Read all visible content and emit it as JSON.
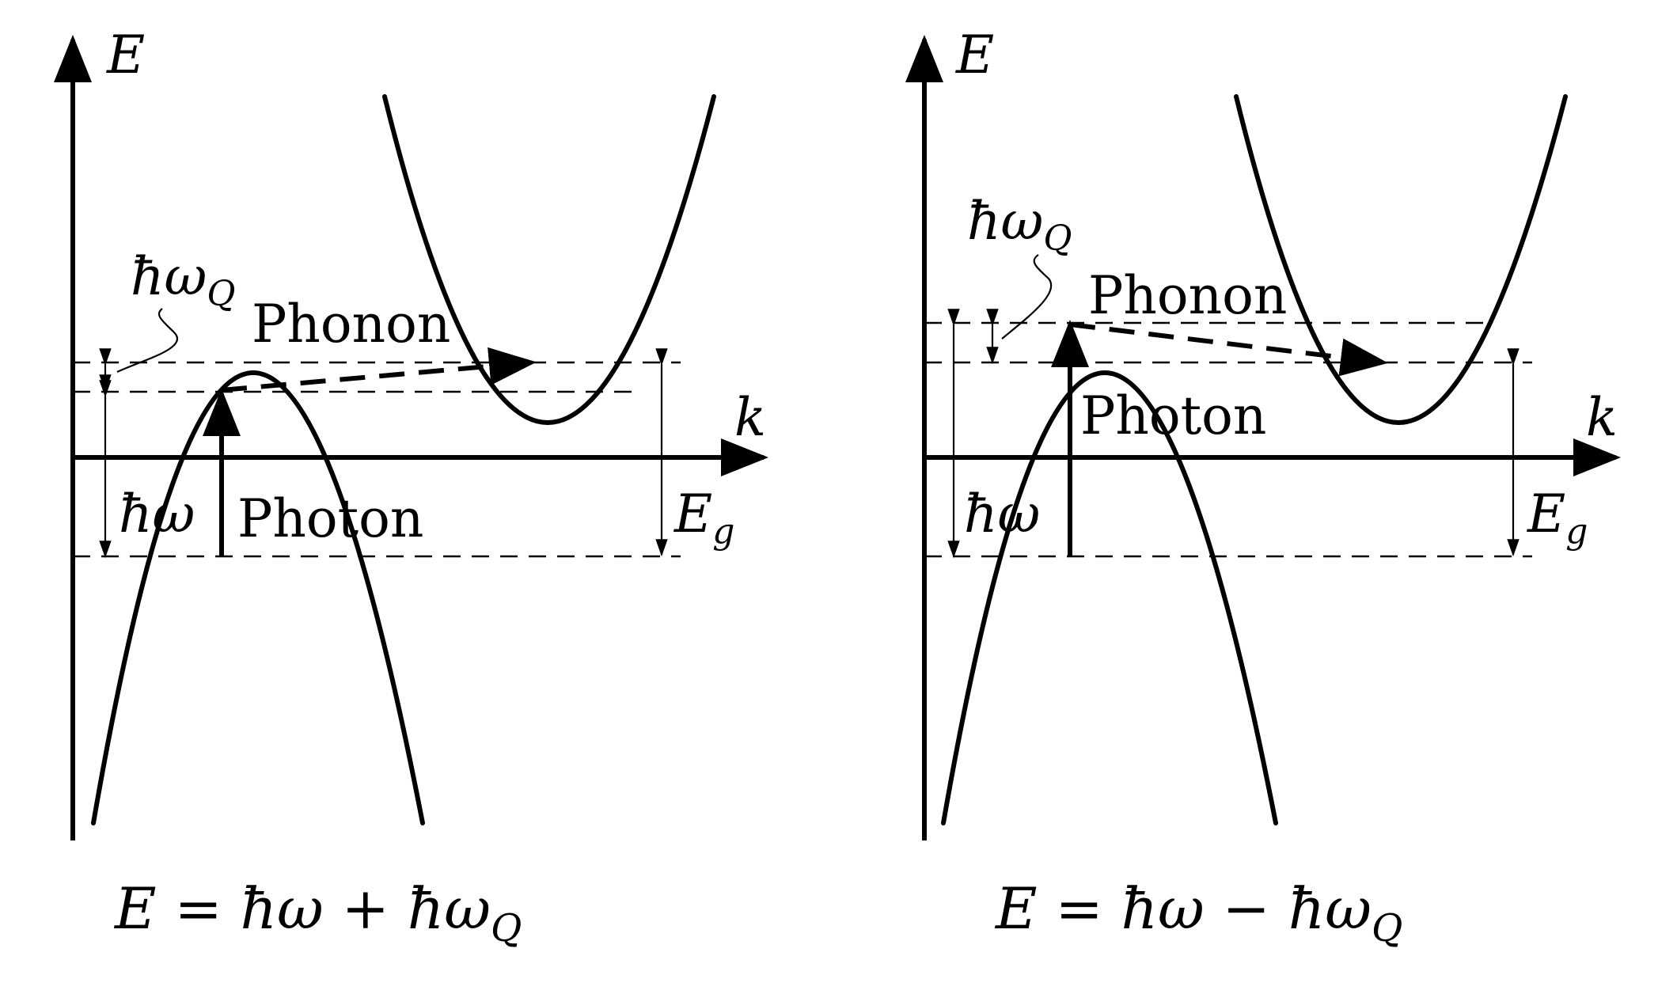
{
  "panels": [
    {
      "e_axis": "E",
      "k_axis": "k",
      "hbar_omega_q": "ħω",
      "hbar_omega_q_sub": "Q",
      "phonon": "Phonon",
      "photon": "Photon",
      "hbar_omega": "ħω",
      "eg": "E",
      "eg_sub": "g",
      "equation": "E = ħω + ħω",
      "equation_sub": "Q"
    },
    {
      "e_axis": "E",
      "k_axis": "k",
      "hbar_omega_q": "ħω",
      "hbar_omega_q_sub": "Q",
      "phonon": "Phonon",
      "photon": "Photon",
      "hbar_omega": "ħω",
      "eg": "E",
      "eg_sub": "g",
      "equation": "E = ħω − ħω",
      "equation_sub": "Q"
    }
  ]
}
